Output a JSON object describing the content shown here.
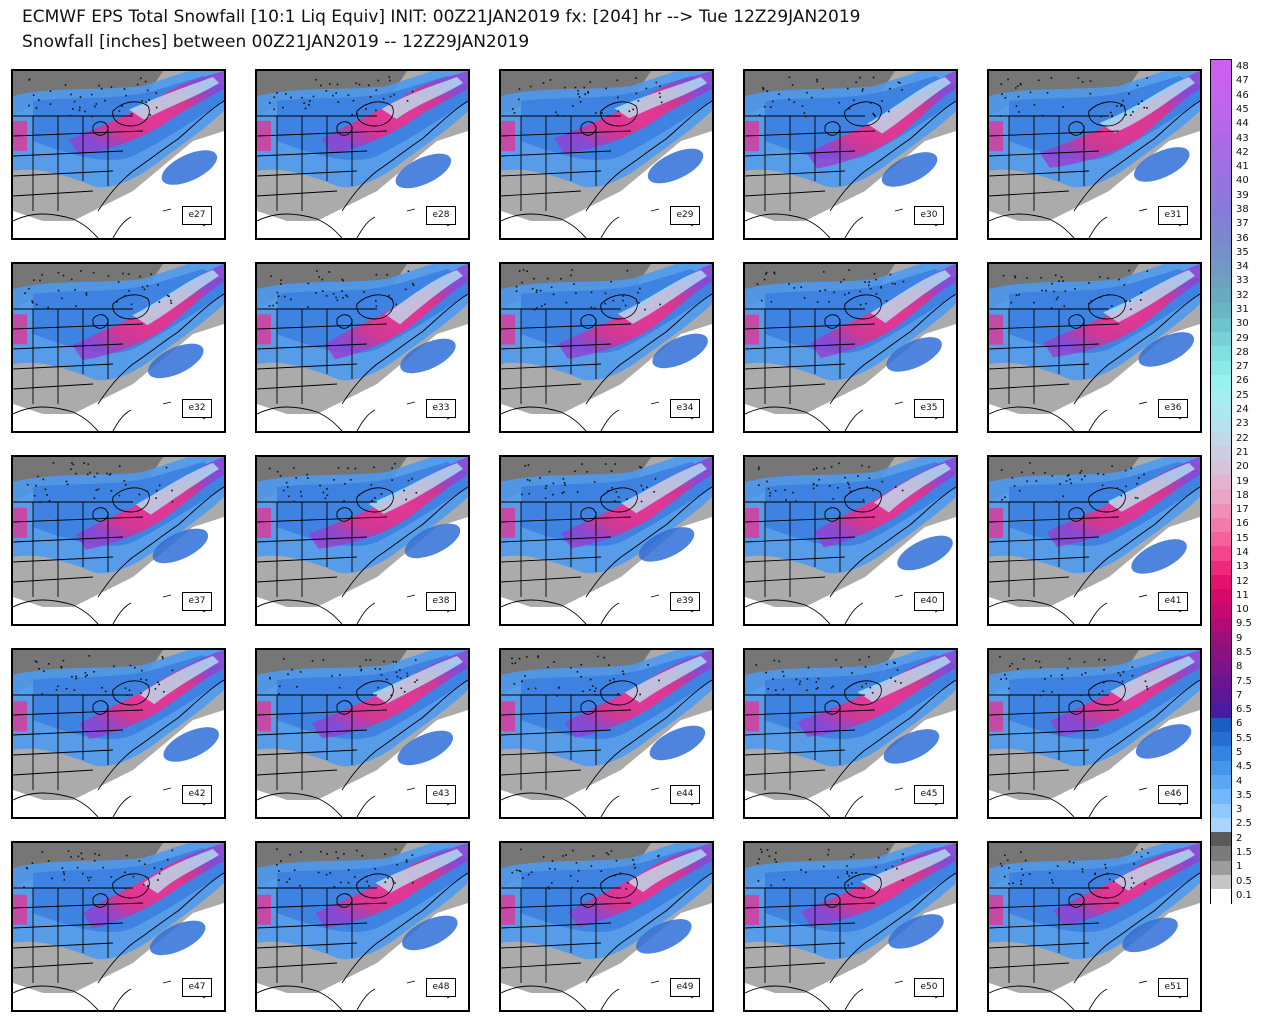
{
  "title_line1": "ECMWF EPS Total Snowfall [10:1 Liq Equiv] INIT: 00Z21JAN2019 fx: [204] hr --> Tue 12Z29JAN2019",
  "title_line2": "Snowfall [inches] between 00Z21JAN2019 -- 12Z29JAN2019",
  "members": [
    "e27",
    "e28",
    "e29",
    "e30",
    "e31",
    "e32",
    "e33",
    "e34",
    "e35",
    "e36",
    "e37",
    "e38",
    "e39",
    "e40",
    "e41",
    "e42",
    "e43",
    "e44",
    "e45",
    "e46",
    "e47",
    "e48",
    "e49",
    "e50",
    "e51"
  ],
  "colorbar": {
    "levels": [
      "0.1",
      "0.5",
      "1",
      "1.5",
      "2",
      "2.5",
      "3",
      "3.5",
      "4",
      "4.5",
      "5",
      "5.5",
      "6",
      "6.5",
      "7",
      "7.5",
      "8",
      "8.5",
      "9",
      "9.5",
      "10",
      "11",
      "12",
      "13",
      "14",
      "15",
      "16",
      "17",
      "18",
      "19",
      "20",
      "21",
      "22",
      "23",
      "24",
      "25",
      "26",
      "27",
      "28",
      "29",
      "30",
      "31",
      "32",
      "33",
      "34",
      "35",
      "36",
      "37",
      "38",
      "39",
      "40",
      "41",
      "42",
      "43",
      "44",
      "45",
      "46",
      "47",
      "48"
    ],
    "colors": [
      "#ffffff",
      "#c6c6c6",
      "#9c9c9c",
      "#7a7a7a",
      "#5a5a5a",
      "#a9d6ff",
      "#8ec8ff",
      "#72b8fb",
      "#5aa8f4",
      "#4496ec",
      "#3184e0",
      "#2470d2",
      "#1a5ec2",
      "#4a1aa0",
      "#5a1898",
      "#6a1690",
      "#7a1488",
      "#8a1280",
      "#9a107a",
      "#b00c74",
      "#c40a70",
      "#d6086c",
      "#e6106e",
      "#f0287c",
      "#f4448c",
      "#f6609c",
      "#f47aac",
      "#f090b8",
      "#eaa4c4",
      "#e2b4d0",
      "#d8c2da",
      "#cccce2",
      "#c0d8ea",
      "#b6e2f0",
      "#ace8f0",
      "#a2eef0",
      "#96f2ee",
      "#8aeae8",
      "#7ee0e0",
      "#76d2d6",
      "#6ec4cc",
      "#68b6c4",
      "#6aaac0",
      "#6ea0c0",
      "#7298c4",
      "#7690c8",
      "#7a88ce",
      "#8082d4",
      "#867cd8",
      "#8e78dc",
      "#9674e0",
      "#9e70e2",
      "#a66ce4",
      "#ae6ae6",
      "#b668e8",
      "#bc66ea",
      "#c264ec",
      "#c862ee",
      "#ce60f0"
    ]
  }
}
